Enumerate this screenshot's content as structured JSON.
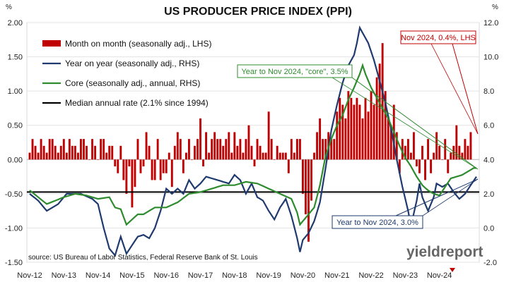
{
  "chart_data": {
    "type": "bar+line",
    "title": "US PRODUCER PRICE INDEX (PPI)",
    "left_unit": "%",
    "right_unit": "%",
    "left_ylim": [
      -1.5,
      2.0
    ],
    "right_ylim": [
      -2.0,
      12.0
    ],
    "left_ticks": [
      "2.00",
      "1.50",
      "1.00",
      "0.50",
      "0.00",
      "-0.50",
      "-1.00",
      "-1.50"
    ],
    "right_ticks": [
      "12.0",
      "10.0",
      "8.0",
      "6.0",
      "4.0",
      "2.0",
      "0.0",
      "-2.0"
    ],
    "x_ticks": [
      "Nov-12",
      "Nov-13",
      "Nov-14",
      "Nov-15",
      "Nov-16",
      "Nov-17",
      "Nov-18",
      "Nov-19",
      "Nov-20",
      "Nov-21",
      "Nov-22",
      "Nov-23",
      "Nov-24"
    ],
    "source": "source: US Bureau of Labor Statistics, Federal Reserve Bank of St. Louis",
    "logo": "yieldreport",
    "series": [
      {
        "name": "Month on month (seasonally adj., LHS)",
        "kind": "bar",
        "color": "#c00000",
        "axis": "left"
      },
      {
        "name": "Year on year (seasonally adj., RHS)",
        "kind": "line",
        "color": "#1f3a6e",
        "axis": "right",
        "anchors": [
          [
            0,
            2.0
          ],
          [
            3,
            1.6
          ],
          [
            6,
            1.0
          ],
          [
            10,
            1.4
          ],
          [
            13,
            2.0
          ],
          [
            18,
            2.0
          ],
          [
            22,
            1.7
          ],
          [
            24,
            1.4
          ],
          [
            26,
            0.0
          ],
          [
            28,
            -1.2
          ],
          [
            30,
            -1.6
          ],
          [
            32,
            -0.5
          ],
          [
            34,
            -1.5
          ],
          [
            36,
            -1.0
          ],
          [
            38,
            -0.5
          ],
          [
            40,
            -0.4
          ],
          [
            42,
            -0.6
          ],
          [
            44,
            0.0
          ],
          [
            46,
            1.0
          ],
          [
            48,
            2.3
          ],
          [
            50,
            2.0
          ],
          [
            52,
            2.3
          ],
          [
            54,
            2.0
          ],
          [
            56,
            2.8
          ],
          [
            58,
            2.3
          ],
          [
            60,
            2.6
          ],
          [
            62,
            3.0
          ],
          [
            66,
            2.8
          ],
          [
            70,
            2.6
          ],
          [
            72,
            3.1
          ],
          [
            74,
            2.8
          ],
          [
            76,
            2.0
          ],
          [
            78,
            2.6
          ],
          [
            80,
            1.8
          ],
          [
            82,
            1.6
          ],
          [
            84,
            1.0
          ],
          [
            86,
            0.5
          ],
          [
            88,
            1.2
          ],
          [
            90,
            1.7
          ],
          [
            92,
            0.7
          ],
          [
            94,
            -0.6
          ],
          [
            95,
            -1.4
          ],
          [
            96,
            -0.7
          ],
          [
            98,
            -0.3
          ],
          [
            100,
            0.4
          ],
          [
            102,
            1.5
          ],
          [
            104,
            3.5
          ],
          [
            106,
            5.7
          ],
          [
            108,
            7.2
          ],
          [
            110,
            8.5
          ],
          [
            112,
            9.5
          ],
          [
            114,
            10.1
          ],
          [
            115,
            10.8
          ],
          [
            116,
            11.7
          ],
          [
            118,
            11.1
          ],
          [
            119,
            10.8
          ],
          [
            121,
            9.8
          ],
          [
            123,
            8.6
          ],
          [
            125,
            7.3
          ],
          [
            127,
            5.8
          ],
          [
            129,
            4.0
          ],
          [
            131,
            2.4
          ],
          [
            133,
            1.0
          ],
          [
            134,
            0.1
          ],
          [
            136,
            1.6
          ],
          [
            137,
            2.6
          ],
          [
            138,
            1.8
          ],
          [
            140,
            1.0
          ],
          [
            142,
            1.8
          ],
          [
            143,
            2.6
          ],
          [
            145,
            2.4
          ],
          [
            147,
            2.6
          ],
          [
            149,
            2.1
          ],
          [
            151,
            1.7
          ],
          [
            153,
            2.0
          ],
          [
            155,
            2.5
          ],
          [
            157,
            3.0
          ]
        ]
      },
      {
        "name": "Core (seasonally adj., annual, RHS)",
        "kind": "line",
        "color": "#2e8b2e",
        "axis": "right",
        "anchors": [
          [
            0,
            2.2
          ],
          [
            6,
            1.4
          ],
          [
            12,
            1.8
          ],
          [
            16,
            2.0
          ],
          [
            20,
            1.9
          ],
          [
            24,
            1.7
          ],
          [
            28,
            1.8
          ],
          [
            30,
            1.2
          ],
          [
            32,
            1.1
          ],
          [
            34,
            0.2
          ],
          [
            36,
            0.5
          ],
          [
            38,
            0.8
          ],
          [
            40,
            0.8
          ],
          [
            44,
            1.2
          ],
          [
            48,
            1.2
          ],
          [
            52,
            1.5
          ],
          [
            56,
            2.0
          ],
          [
            60,
            2.1
          ],
          [
            64,
            2.3
          ],
          [
            68,
            2.5
          ],
          [
            72,
            2.5
          ],
          [
            76,
            2.7
          ],
          [
            80,
            2.6
          ],
          [
            84,
            2.3
          ],
          [
            88,
            2.0
          ],
          [
            92,
            1.7
          ],
          [
            94,
            0.9
          ],
          [
            95,
            0.2
          ],
          [
            96,
            0.4
          ],
          [
            98,
            0.8
          ],
          [
            100,
            1.2
          ],
          [
            102,
            2.5
          ],
          [
            104,
            4.2
          ],
          [
            106,
            5.2
          ],
          [
            108,
            6.0
          ],
          [
            110,
            6.6
          ],
          [
            112,
            7.5
          ],
          [
            114,
            8.2
          ],
          [
            116,
            9.0
          ],
          [
            117,
            9.5
          ],
          [
            118,
            9.0
          ],
          [
            120,
            8.2
          ],
          [
            122,
            7.6
          ],
          [
            124,
            7.0
          ],
          [
            126,
            6.4
          ],
          [
            128,
            5.6
          ],
          [
            130,
            4.8
          ],
          [
            132,
            4.1
          ],
          [
            134,
            3.6
          ],
          [
            136,
            3.0
          ],
          [
            138,
            2.5
          ],
          [
            140,
            2.2
          ],
          [
            142,
            2.0
          ],
          [
            144,
            1.9
          ],
          [
            146,
            2.4
          ],
          [
            148,
            2.9
          ],
          [
            150,
            3.0
          ],
          [
            152,
            3.1
          ],
          [
            154,
            3.3
          ],
          [
            156,
            3.5
          ],
          [
            157,
            3.5
          ]
        ]
      },
      {
        "name": "Median annual rate (2.1% since 1994)",
        "kind": "hline",
        "color": "#000000",
        "axis": "right",
        "value": 2.1
      }
    ],
    "annotations": [
      {
        "text": "Nov 2024, 0.4%, LHS",
        "color": "#c00000"
      },
      {
        "text": "Year to Nov 2024, \"core\", 3.5%",
        "color": "#2e8b2e"
      },
      {
        "text": "Year to Nov 2024, 3.0%",
        "color": "#1f3a6e"
      }
    ]
  }
}
